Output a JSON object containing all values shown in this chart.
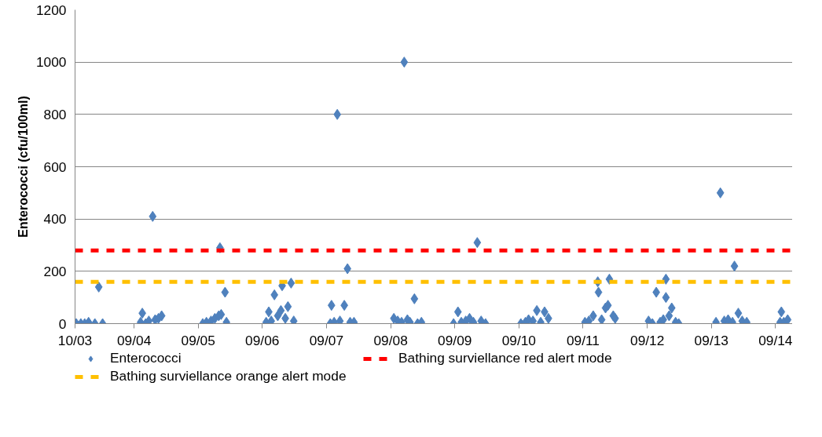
{
  "chart_data": {
    "type": "scatter",
    "ylabel": "Enterococci (cfu/100ml)",
    "xlim": [
      "2003-10-01",
      "2015-01-07"
    ],
    "xticks": [
      {
        "value": "2003-10-01",
        "label": "10/03"
      },
      {
        "value": "2004-09-01",
        "label": "09/04"
      },
      {
        "value": "2005-09-01",
        "label": "09/05"
      },
      {
        "value": "2006-09-01",
        "label": "09/06"
      },
      {
        "value": "2007-09-01",
        "label": "09/07"
      },
      {
        "value": "2008-09-01",
        "label": "09/08"
      },
      {
        "value": "2009-09-01",
        "label": "09/09"
      },
      {
        "value": "2010-09-01",
        "label": "09/10"
      },
      {
        "value": "2011-09-01",
        "label": "09/11"
      },
      {
        "value": "2012-09-01",
        "label": "09/12"
      },
      {
        "value": "2013-09-01",
        "label": "09/13"
      },
      {
        "value": "2014-09-01",
        "label": "09/14"
      }
    ],
    "ylim": [
      0,
      1200
    ],
    "yticks": [
      0,
      200,
      400,
      600,
      800,
      1000,
      1200
    ],
    "grid": "y",
    "legend": "bottom",
    "marker": "diamond",
    "series": [
      {
        "name": "Enterococci",
        "color": "#4f81bd",
        "x": [
          "2003-10-08",
          "2003-11-03",
          "2003-11-25",
          "2003-12-17",
          "2004-01-22",
          "2004-02-13",
          "2004-03-06",
          "2004-10-08",
          "2004-10-18",
          "2004-11-06",
          "2004-11-24",
          "2004-12-16",
          "2004-12-30",
          "2005-01-18",
          "2005-02-05",
          "2005-09-27",
          "2005-10-18",
          "2005-11-13",
          "2005-12-05",
          "2005-12-27",
          "2006-01-03",
          "2006-01-10",
          "2006-02-01",
          "2006-02-09",
          "2006-09-23",
          "2006-10-08",
          "2006-10-22",
          "2006-11-09",
          "2006-11-28",
          "2006-12-16",
          "2006-12-23",
          "2007-01-10",
          "2007-01-25",
          "2007-02-12",
          "2007-02-27",
          "2007-09-23",
          "2007-09-30",
          "2007-10-15",
          "2007-11-02",
          "2007-11-17",
          "2007-12-12",
          "2007-12-30",
          "2008-01-14",
          "2008-02-05",
          "2008-09-19",
          "2008-10-11",
          "2008-11-02",
          "2008-11-17",
          "2008-12-05",
          "2008-12-20",
          "2009-01-14",
          "2009-02-01",
          "2009-02-23",
          "2009-08-25",
          "2009-09-19",
          "2009-10-08",
          "2009-11-02",
          "2009-11-24",
          "2009-12-16",
          "2010-01-07",
          "2010-01-29",
          "2010-02-23",
          "2010-09-12",
          "2010-10-08",
          "2010-10-26",
          "2010-11-20",
          "2010-12-12",
          "2011-01-03",
          "2011-01-25",
          "2011-02-16",
          "2011-09-12",
          "2011-10-04",
          "2011-10-29",
          "2011-11-24",
          "2011-11-28",
          "2011-12-16",
          "2012-01-07",
          "2012-01-21",
          "2012-01-29",
          "2012-02-20",
          "2012-03-02",
          "2012-09-08",
          "2012-09-30",
          "2012-10-22",
          "2012-11-13",
          "2012-12-01",
          "2012-12-16",
          "2012-12-16",
          "2013-01-03",
          "2013-01-18",
          "2013-02-09",
          "2013-02-27",
          "2013-09-27",
          "2013-10-22",
          "2013-11-13",
          "2013-12-05",
          "2013-12-30",
          "2014-01-10",
          "2014-02-01",
          "2014-02-23",
          "2014-03-21",
          "2014-09-27",
          "2014-10-04",
          "2014-10-18",
          "2014-11-09"
        ],
        "values": [
          0,
          0,
          0,
          5,
          0,
          140,
          0,
          5,
          40,
          0,
          10,
          410,
          15,
          20,
          30,
          0,
          5,
          10,
          20,
          30,
          290,
          35,
          120,
          5,
          5,
          45,
          10,
          110,
          30,
          50,
          145,
          20,
          65,
          155,
          10,
          0,
          70,
          5,
          800,
          10,
          70,
          210,
          5,
          5,
          20,
          10,
          5,
          1000,
          15,
          5,
          95,
          0,
          5,
          0,
          45,
          5,
          10,
          20,
          5,
          310,
          10,
          0,
          0,
          5,
          15,
          10,
          50,
          5,
          45,
          20,
          5,
          10,
          30,
          160,
          120,
          15,
          60,
          70,
          170,
          30,
          20,
          10,
          0,
          120,
          5,
          15,
          170,
          100,
          30,
          60,
          5,
          0,
          5,
          500,
          10,
          15,
          5,
          220,
          40,
          10,
          5,
          5,
          45,
          5,
          15
        ]
      }
    ],
    "ref_lines": [
      {
        "axis": "y",
        "value": 280,
        "label": "Bathing surviellance red alert mode",
        "color": "#ff0000",
        "line_style": "dashed"
      },
      {
        "axis": "y",
        "value": 160,
        "label": "Bathing surviellance orange alert mode",
        "color": "#ffc000",
        "line_style": "dashed"
      }
    ]
  }
}
